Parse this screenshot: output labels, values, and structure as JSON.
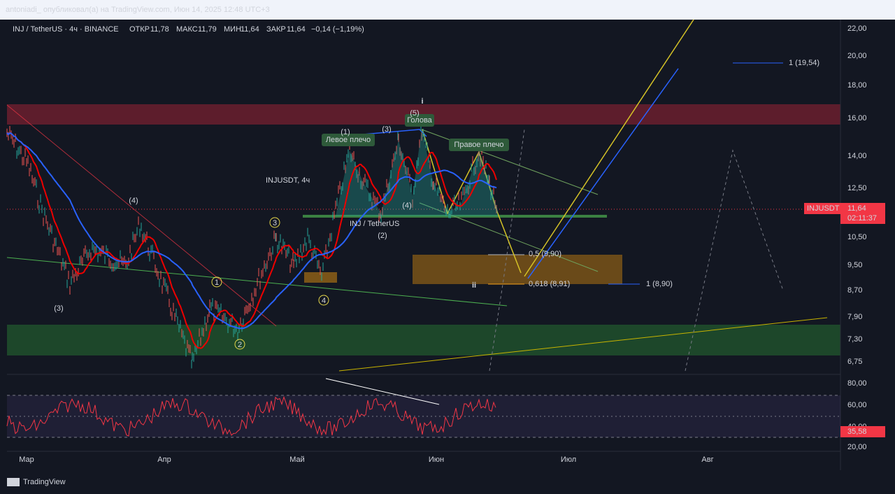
{
  "header": {
    "publisher": "antoniadi_ опубликовал(а) на TradingView.com, Июн 14, 2025 12:48 UTC+3"
  },
  "legend": {
    "symbol": "INJ / TetherUS · 4ч · BINANCE",
    "open_label": "ОТКР",
    "open": "11,78",
    "high_label": "МАКС",
    "high": "11,79",
    "low_label": "МИН",
    "low": "11,64",
    "close_label": "ЗАКР",
    "close": "11,64",
    "change": "−0,14 (−1,19%)"
  },
  "watermark": {
    "title": "INJUSDT, 4ч",
    "subtitle": "INJ / TetherUS"
  },
  "price_axis": [
    "22,00",
    "20,00",
    "18,00",
    "16,00",
    "14,00",
    "12,50",
    "10,50",
    "9,50",
    "8,70",
    "7,90",
    "7,30",
    "6,75"
  ],
  "rsi_axis": [
    "80,00",
    "60,00",
    "40,00",
    "20,00"
  ],
  "time_axis": [
    "Мар",
    "Апр",
    "Май",
    "Июн",
    "Июл",
    "Авг"
  ],
  "price_tag": {
    "symbol": "INJUSDT",
    "price": "11,64",
    "countdown": "02:11:37"
  },
  "rsi_tag": "35,58",
  "annotations": {
    "left_shoulder": "Левое плечо",
    "head": "Голова",
    "right_shoulder": "Правое плечо",
    "wave_labels": [
      "(1)",
      "(2)",
      "(3)",
      "(4)",
      "(5)",
      "(4)",
      "(3)"
    ],
    "circled": [
      "1",
      "2",
      "3",
      "4"
    ],
    "wave_i": "i",
    "wave_ii": "ii",
    "fib_05": "0,5 (9,90)",
    "fib_0618": "0,618 (8,91)",
    "target_low": "1 (8,90)",
    "target_high": "1 (19,54)"
  },
  "footer": {
    "brand": "TradingView"
  }
}
